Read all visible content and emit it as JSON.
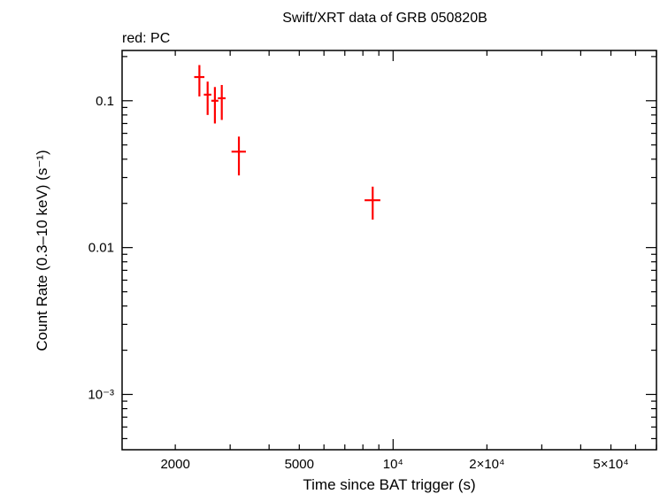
{
  "chart_data": {
    "type": "scatter",
    "title": "Swift/XRT data of GRB 050820B",
    "subtitle": "red: PC",
    "xlabel": "Time since BAT trigger (s)",
    "ylabel": "Count Rate (0.3–10 keV) (s⁻¹)",
    "xscale": "log",
    "yscale": "log",
    "xlim": [
      1350,
      70000
    ],
    "ylim": [
      0.00042,
      0.22
    ],
    "x_ticks": [
      {
        "value": 2000,
        "label": "2000"
      },
      {
        "value": 5000,
        "label": "5000"
      },
      {
        "value": 10000,
        "label": "10⁴"
      },
      {
        "value": 20000,
        "label": "2×10⁴"
      },
      {
        "value": 50000,
        "label": "5×10⁴"
      }
    ],
    "y_ticks": [
      {
        "value": 0.1,
        "label": "0.1"
      },
      {
        "value": 0.01,
        "label": "0.01"
      },
      {
        "value": 0.001,
        "label": "10⁻³"
      }
    ],
    "grid": false,
    "series": [
      {
        "color": "#ff0000",
        "points": [
          {
            "x": 2390,
            "xerr": [
              90,
              90
            ],
            "y": 0.145,
            "yerr": [
              0.038,
              0.03
            ]
          },
          {
            "x": 2540,
            "xerr": [
              70,
              70
            ],
            "y": 0.11,
            "yerr": [
              0.03,
              0.025
            ]
          },
          {
            "x": 2680,
            "xerr": [
              70,
              70
            ],
            "y": 0.1,
            "yerr": [
              0.03,
              0.024
            ]
          },
          {
            "x": 2820,
            "xerr": [
              80,
              80
            ],
            "y": 0.104,
            "yerr": [
              0.03,
              0.024
            ]
          },
          {
            "x": 3200,
            "xerr": [
              170,
              170
            ],
            "y": 0.045,
            "yerr": [
              0.014,
              0.012
            ]
          },
          {
            "x": 8600,
            "xerr": [
              500,
              500
            ],
            "y": 0.021,
            "yerr": [
              0.0055,
              0.005
            ]
          }
        ]
      }
    ]
  }
}
